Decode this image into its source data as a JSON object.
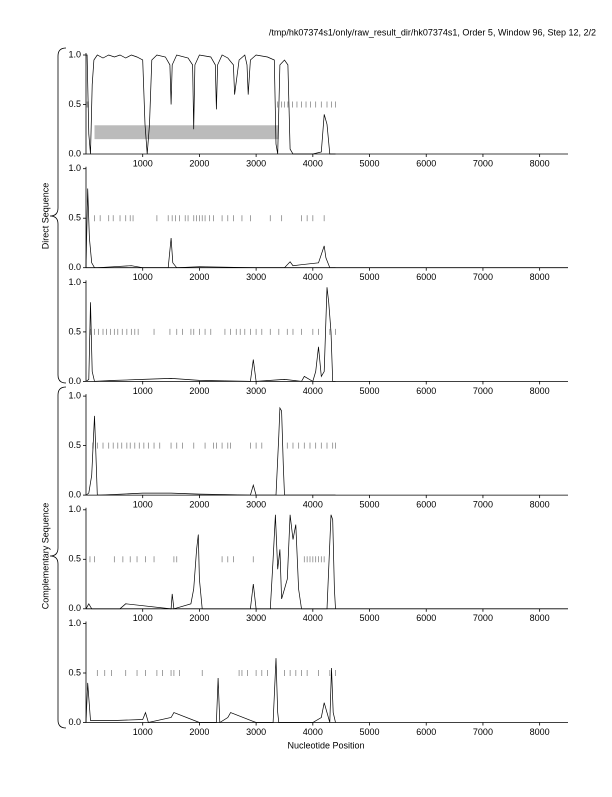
{
  "header": "/tmp/hk07374s1/only/raw_result_dir/hk07374s1, Order 5, Window 96, Step 12, 2/2",
  "groups": [
    "Direct Sequence",
    "Complementary Sequence"
  ],
  "xlabel": "Nucleotide Position",
  "chart_data": [
    {
      "type": "line",
      "color": "#000000",
      "marker_color": "#888888",
      "xlim": [
        0,
        8500
      ],
      "ylim": [
        0,
        1
      ],
      "xticks": [
        1000,
        2000,
        3000,
        4000,
        5000,
        6000,
        7000,
        8000
      ],
      "yticks": [
        {
          "value": 0,
          "label": "0.0"
        },
        {
          "value": 0.5,
          "label": "0.5"
        },
        {
          "value": 1,
          "label": "1.0"
        }
      ],
      "x": [
        0,
        20,
        50,
        80,
        110,
        140,
        200,
        300,
        400,
        500,
        600,
        700,
        800,
        900,
        1000,
        1040,
        1080,
        1120,
        1160,
        1250,
        1400,
        1480,
        1500,
        1520,
        1600,
        1800,
        1880,
        1900,
        1920,
        2000,
        2200,
        2280,
        2300,
        2320,
        2400,
        2500,
        2600,
        2620,
        2700,
        2800,
        2840,
        2860,
        2900,
        3000,
        3200,
        3320,
        3350,
        3380,
        3420,
        3500,
        3560,
        3600,
        3650,
        3800,
        4000,
        4150,
        4200,
        4250,
        4300,
        4400
      ],
      "values": [
        1,
        1,
        0.2,
        0,
        0.7,
        0.95,
        1,
        0.97,
        1,
        0.98,
        1,
        0.97,
        1,
        0.98,
        0.95,
        0.3,
        0,
        0.3,
        0.95,
        1,
        0.98,
        0.9,
        0.5,
        0.9,
        1,
        0.97,
        0.9,
        0.25,
        0.9,
        1,
        0.98,
        0.9,
        0.45,
        0.9,
        1,
        0.97,
        0.9,
        0.6,
        0.95,
        1,
        0.9,
        0.6,
        0.95,
        1,
        0.98,
        0.95,
        0.1,
        0,
        0.9,
        0.95,
        0.9,
        0.05,
        0,
        0,
        0,
        0.02,
        0.4,
        0.3,
        0,
        0
      ],
      "marker_level": 0.5,
      "markers": [
        20,
        40,
        3380,
        3450,
        3500,
        3560,
        3640,
        3720,
        3800,
        3880,
        3960,
        4050,
        4150,
        4250,
        4330,
        4400
      ],
      "highlight": {
        "color": "#bbbbbb",
        "x": [
          150,
          3400
        ],
        "y": [
          0.15,
          0.29
        ]
      }
    },
    {
      "type": "line",
      "color": "#000000",
      "marker_color": "#888888",
      "xlim": [
        0,
        8500
      ],
      "ylim": [
        0,
        1
      ],
      "xticks": [
        1000,
        2000,
        3000,
        4000,
        5000,
        6000,
        7000,
        8000
      ],
      "yticks": [
        {
          "value": 0,
          "label": "0.0"
        },
        {
          "value": 0.5,
          "label": "0.5"
        },
        {
          "value": 1,
          "label": "1.0"
        }
      ],
      "x": [
        0,
        30,
        60,
        100,
        150,
        200,
        500,
        800,
        1000,
        1450,
        1500,
        1530,
        1600,
        2000,
        3000,
        3500,
        3600,
        3650,
        3800,
        4100,
        4200,
        4230,
        4300,
        4400
      ],
      "values": [
        0,
        0.8,
        0.3,
        0.05,
        0,
        0,
        0.01,
        0.02,
        0,
        0,
        0.3,
        0.05,
        0,
        0.01,
        0,
        0,
        0.06,
        0.02,
        0.03,
        0.05,
        0.22,
        0.1,
        0,
        0
      ],
      "marker_level": 0.5,
      "markers": [
        150,
        250,
        400,
        480,
        600,
        700,
        780,
        830,
        1250,
        1450,
        1520,
        1580,
        1650,
        1750,
        1800,
        1900,
        1950,
        2000,
        2050,
        2100,
        2180,
        2250,
        2400,
        2500,
        2600,
        2750,
        2900,
        3250,
        3450,
        3800,
        3900,
        4000,
        4200
      ]
    },
    {
      "type": "line",
      "color": "#000000",
      "marker_color": "#888888",
      "xlim": [
        0,
        8500
      ],
      "ylim": [
        0,
        1
      ],
      "xticks": [
        1000,
        2000,
        3000,
        4000,
        5000,
        6000,
        7000,
        8000
      ],
      "yticks": [
        {
          "value": 0,
          "label": "0.0"
        },
        {
          "value": 0.5,
          "label": "0.5"
        },
        {
          "value": 1,
          "label": "1.0"
        }
      ],
      "x": [
        0,
        50,
        80,
        110,
        150,
        500,
        1000,
        1500,
        2000,
        2900,
        2950,
        3000,
        3500,
        3800,
        3850,
        4000,
        4050,
        4100,
        4150,
        4200,
        4250,
        4280,
        4320,
        4350,
        4400
      ],
      "values": [
        0,
        0.02,
        0.8,
        0.1,
        0,
        0.01,
        0.02,
        0.03,
        0.01,
        0,
        0.22,
        0,
        0.02,
        0,
        0.05,
        0,
        0.1,
        0.35,
        0.05,
        0.1,
        0.95,
        0.8,
        0.5,
        0,
        0
      ],
      "marker_level": 0.5,
      "markers": [
        80,
        150,
        220,
        300,
        360,
        430,
        500,
        560,
        640,
        720,
        800,
        860,
        920,
        1200,
        1480,
        1600,
        1700,
        1850,
        1900,
        2000,
        2100,
        2200,
        2450,
        2550,
        2650,
        2720,
        2800,
        2900,
        3000,
        3100,
        3250,
        3400,
        3550,
        3650,
        3800,
        4000,
        4100,
        4300,
        4400
      ]
    },
    {
      "type": "line",
      "color": "#000000",
      "marker_color": "#888888",
      "xlim": [
        0,
        8500
      ],
      "ylim": [
        0,
        1
      ],
      "xticks": [
        1000,
        2000,
        3000,
        4000,
        5000,
        6000,
        7000,
        8000
      ],
      "yticks": [
        {
          "value": 0,
          "label": "0.0"
        },
        {
          "value": 0.5,
          "label": "0.5"
        },
        {
          "value": 1,
          "label": "1.0"
        }
      ],
      "x": [
        0,
        50,
        100,
        150,
        170,
        200,
        250,
        1000,
        1500,
        2000,
        2900,
        2950,
        3000,
        3350,
        3400,
        3420,
        3450,
        3480,
        3500,
        4000,
        4400
      ],
      "values": [
        0,
        0.02,
        0.2,
        0.8,
        0.5,
        0,
        0,
        0.02,
        0.02,
        0.01,
        0,
        0.1,
        0,
        0,
        0.6,
        0.88,
        0.85,
        0.3,
        0,
        0,
        0
      ],
      "marker_level": 0.5,
      "markers": [
        120,
        200,
        300,
        400,
        480,
        560,
        630,
        720,
        780,
        860,
        940,
        1020,
        1100,
        1200,
        1300,
        1500,
        1600,
        1700,
        1900,
        2100,
        2250,
        2300,
        2400,
        2500,
        2550,
        2900,
        3000,
        3100,
        3550,
        3650,
        3750,
        3850,
        3950,
        4050,
        4150,
        4250,
        4350,
        4400
      ]
    },
    {
      "type": "line",
      "color": "#000000",
      "marker_color": "#888888",
      "xlim": [
        0,
        8500
      ],
      "ylim": [
        0,
        1
      ],
      "xticks": [
        1000,
        2000,
        3000,
        4000,
        5000,
        6000,
        7000,
        8000
      ],
      "yticks": [
        {
          "value": 0,
          "label": "0.0"
        },
        {
          "value": 0.5,
          "label": "0.5"
        },
        {
          "value": 1,
          "label": "1.0"
        }
      ],
      "x": [
        0,
        50,
        100,
        600,
        700,
        1500,
        1520,
        1550,
        1850,
        1900,
        1950,
        1980,
        2000,
        2050,
        2900,
        2950,
        3000,
        3250,
        3300,
        3340,
        3380,
        3420,
        3450,
        3500,
        3550,
        3600,
        3650,
        3700,
        3750,
        3800,
        4200,
        4250,
        4320,
        4350,
        4380,
        4400
      ],
      "values": [
        0,
        0.05,
        0,
        0,
        0.05,
        0,
        0.15,
        0,
        0.05,
        0.2,
        0.6,
        0.75,
        0.3,
        0,
        0,
        0.25,
        0,
        0,
        0.5,
        0.95,
        0.4,
        0.6,
        0.1,
        0.2,
        0.3,
        0.95,
        0.7,
        0.85,
        0.2,
        0,
        0,
        0,
        0.95,
        0.9,
        0.2,
        0
      ],
      "marker_level": 0.5,
      "markers": [
        70,
        150,
        500,
        650,
        780,
        900,
        1050,
        1200,
        1550,
        1600,
        2400,
        2500,
        2600,
        2950,
        3850,
        3900,
        3950,
        4000,
        4050,
        4100,
        4150,
        4200
      ]
    },
    {
      "type": "line",
      "color": "#000000",
      "marker_color": "#888888",
      "xlim": [
        0,
        8500
      ],
      "ylim": [
        0,
        1
      ],
      "xticks": [
        1000,
        2000,
        3000,
        4000,
        5000,
        6000,
        7000,
        8000
      ],
      "yticks": [
        {
          "value": 0,
          "label": "0.0"
        },
        {
          "value": 0.5,
          "label": "0.5"
        },
        {
          "value": 1,
          "label": "1.0"
        }
      ],
      "x": [
        0,
        30,
        80,
        500,
        1000,
        1050,
        1100,
        1500,
        1550,
        2000,
        2300,
        2330,
        2360,
        2500,
        2550,
        3000,
        3300,
        3350,
        3380,
        3400,
        4000,
        4150,
        4200,
        4300,
        4330,
        4360,
        4400
      ],
      "values": [
        0,
        0.4,
        0.02,
        0.02,
        0.03,
        0.1,
        0,
        0.05,
        0.1,
        0,
        0,
        0.45,
        0,
        0.05,
        0.1,
        0,
        0,
        0.65,
        0.1,
        0,
        0,
        0.05,
        0.2,
        0,
        0.55,
        0.1,
        0
      ],
      "marker_level": 0.5,
      "markers": [
        200,
        330,
        450,
        700,
        900,
        1050,
        1250,
        1350,
        1500,
        1550,
        1650,
        2050,
        2700,
        2750,
        2850,
        3000,
        3100,
        3200,
        3500,
        3600,
        3700,
        3800,
        3900,
        4100,
        4300,
        4400
      ]
    }
  ]
}
